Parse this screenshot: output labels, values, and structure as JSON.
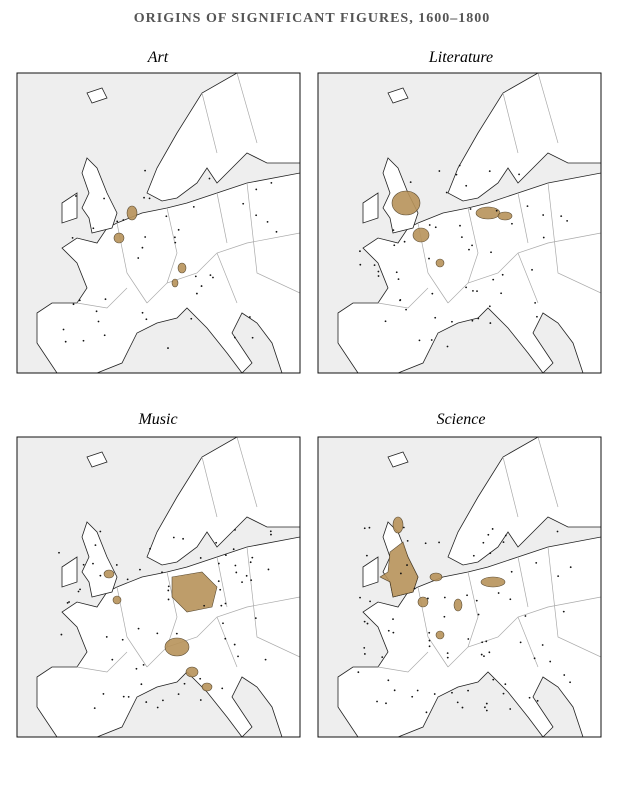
{
  "title": "ORIGINS OF SIGNIFICANT FIGURES, 1600–1800",
  "panels": [
    {
      "title": "Art"
    },
    {
      "title": "Literature"
    },
    {
      "title": "Music"
    },
    {
      "title": "Science"
    }
  ]
}
